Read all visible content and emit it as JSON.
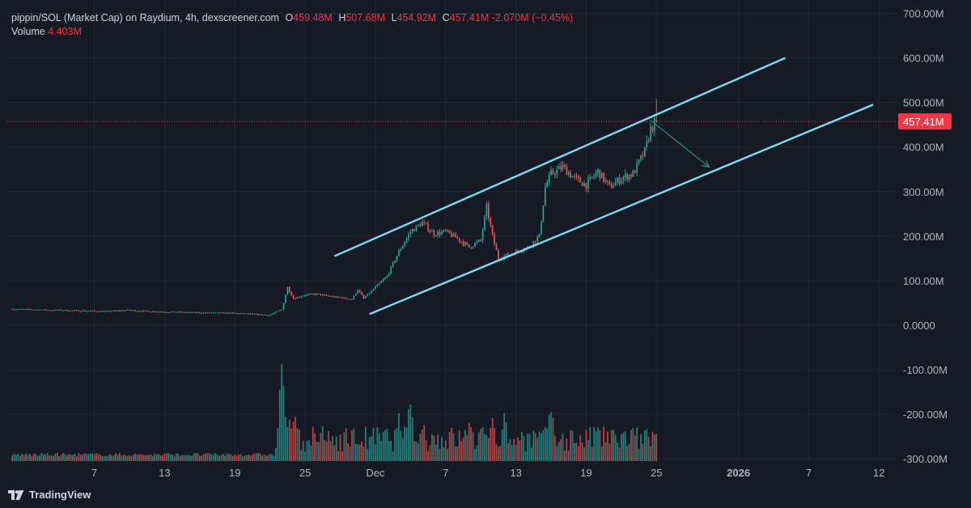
{
  "legend": {
    "title": "pippin/SOL (Market Cap) on Raydium, 4h, dexscreener.com",
    "open_key": "O",
    "open": "459.48M",
    "high_key": "H",
    "high": "507.68M",
    "low_key": "L",
    "low": "454.92M",
    "close_key": "C",
    "close": "457.41M",
    "change": "-2.070M (−0.45%)",
    "volume_label": "Volume",
    "volume_value": "4.403M"
  },
  "brand": {
    "name": "TradingView"
  },
  "colors": {
    "background": "#161a25",
    "grid": "#232734",
    "up": "#26a69a",
    "down": "#ef5350",
    "channel": "#7fdcf0",
    "arrow": "#2e8a7e",
    "price_badge": "#f23645",
    "axis_text": "#b2b5be"
  },
  "chart_data": {
    "type": "candlestick",
    "interval": "4h",
    "y_axis": {
      "ticks": [
        700,
        600,
        500,
        400,
        300,
        200,
        100,
        0,
        -100,
        -200,
        -300
      ],
      "tick_labels": [
        "700.00M",
        "600.00M",
        "500.00M",
        "400.00M",
        "300.00M",
        "200.00M",
        "100.00M",
        "0.0000",
        "-100.00M",
        "-200.00M",
        "-300.00M"
      ],
      "unit": "M",
      "range": [
        -305,
        730
      ]
    },
    "x_axis": {
      "tick_days": [
        7,
        13,
        19,
        25,
        31,
        37,
        43,
        49,
        55,
        62,
        68,
        74
      ],
      "tick_labels": [
        "7",
        "13",
        "19",
        "25",
        "Dec",
        "7",
        "13",
        "19",
        "25",
        "2026",
        "7",
        "12"
      ],
      "bold": [
        false,
        false,
        false,
        false,
        false,
        false,
        false,
        false,
        false,
        true,
        false,
        false
      ],
      "range_days": [
        -0.5,
        75.5
      ]
    },
    "last_price": {
      "value": 457.41,
      "label": "457.41M"
    },
    "price_path": [
      [
        0,
        36
      ],
      [
        5,
        33
      ],
      [
        8,
        31
      ],
      [
        10,
        34
      ],
      [
        11,
        32
      ],
      [
        13,
        30
      ],
      [
        16,
        28
      ],
      [
        19,
        27
      ],
      [
        21,
        24
      ],
      [
        22,
        23
      ],
      [
        23,
        35
      ],
      [
        23.5,
        85
      ],
      [
        24,
        60
      ],
      [
        25,
        68
      ],
      [
        26,
        70
      ],
      [
        27,
        65
      ],
      [
        28,
        62
      ],
      [
        29,
        58
      ],
      [
        29.5,
        80
      ],
      [
        30,
        60
      ],
      [
        31,
        85
      ],
      [
        32,
        110
      ],
      [
        33,
        165
      ],
      [
        34,
        210
      ],
      [
        35,
        230
      ],
      [
        36,
        205
      ],
      [
        37,
        210
      ],
      [
        38,
        195
      ],
      [
        39,
        175
      ],
      [
        40,
        190
      ],
      [
        40.5,
        265
      ],
      [
        41,
        200
      ],
      [
        41.5,
        150
      ],
      [
        42,
        155
      ],
      [
        43,
        165
      ],
      [
        44,
        175
      ],
      [
        45,
        200
      ],
      [
        45.5,
        310
      ],
      [
        46,
        340
      ],
      [
        47,
        355
      ],
      [
        48,
        330
      ],
      [
        49,
        315
      ],
      [
        50,
        345
      ],
      [
        51,
        310
      ],
      [
        52,
        330
      ],
      [
        53,
        340
      ],
      [
        54,
        390
      ],
      [
        54.5,
        440
      ],
      [
        55,
        460
      ]
    ],
    "volume_spikes": [
      [
        23,
        0.98
      ],
      [
        23.5,
        0.45
      ],
      [
        24,
        0.55
      ],
      [
        33,
        0.5
      ],
      [
        34,
        0.72
      ],
      [
        35,
        0.42
      ],
      [
        39,
        0.4
      ],
      [
        41,
        0.52
      ],
      [
        42,
        0.42
      ],
      [
        46,
        0.5
      ],
      [
        50,
        0.35
      ],
      [
        55,
        0.3
      ]
    ],
    "last_bar": {
      "open": 459.48,
      "high": 507.68,
      "low": 454.92,
      "close": 457.41,
      "volume": 4.403
    },
    "annotations": [
      {
        "type": "channel-line",
        "from": [
          27.5,
          155
        ],
        "to": [
          66,
          600
        ]
      },
      {
        "type": "channel-line",
        "from": [
          30.5,
          25
        ],
        "to": [
          73.5,
          495
        ]
      },
      {
        "type": "arrow",
        "from": [
          54.5,
          460
        ],
        "to": [
          59.5,
          355
        ]
      }
    ]
  }
}
